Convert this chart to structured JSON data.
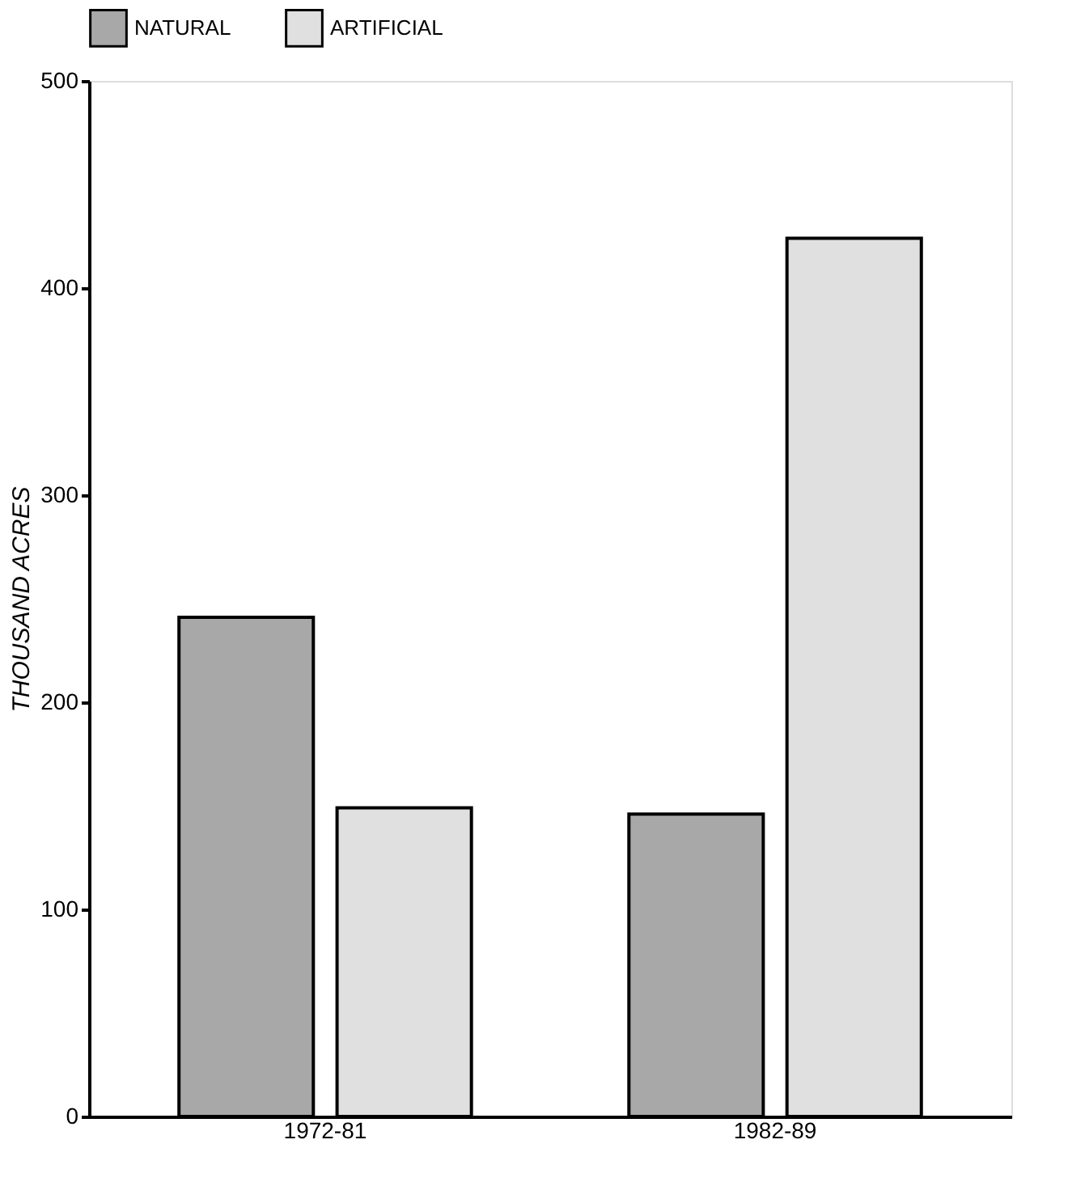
{
  "chart_data": {
    "type": "bar",
    "ylabel": "THOUSAND ACRES",
    "categories": [
      "1972-81",
      "1982-89"
    ],
    "series": [
      {
        "name": "NATURAL",
        "color": "#a8a8a8",
        "values": [
          241,
          146
        ]
      },
      {
        "name": "ARTIFICIAL",
        "color": "#e0e0e0",
        "values": [
          149,
          424
        ]
      }
    ],
    "ylim": [
      0,
      500
    ],
    "yticks": [
      0,
      100,
      200,
      300,
      400,
      500
    ],
    "grid": false,
    "legend": "top"
  }
}
